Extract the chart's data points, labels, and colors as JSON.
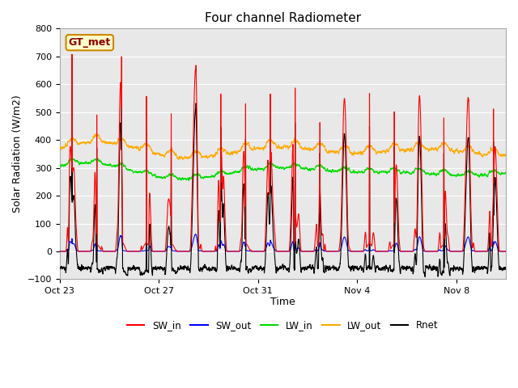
{
  "title": "Four channel Radiometer",
  "xlabel": "Time",
  "ylabel": "Solar Radiation (W/m2)",
  "ylim": [
    -100,
    800
  ],
  "yticks": [
    -100,
    0,
    100,
    200,
    300,
    400,
    500,
    600,
    700,
    800
  ],
  "fig_bg_color": "#ffffff",
  "plot_bg_color": "#e8e8e8",
  "grid_color": "#ffffff",
  "annotation_text": "GT_met",
  "annotation_bg": "#ffffcc",
  "annotation_border": "#cc8800",
  "series": {
    "SW_in": {
      "color": "#ff0000",
      "lw": 0.8
    },
    "SW_out": {
      "color": "#0000ff",
      "lw": 0.8
    },
    "LW_in": {
      "color": "#00dd00",
      "lw": 0.8
    },
    "LW_out": {
      "color": "#ffaa00",
      "lw": 0.8
    },
    "Rnet": {
      "color": "#000000",
      "lw": 0.8
    }
  },
  "xtick_labels": [
    "Oct 23",
    "Oct 27",
    "Oct 31",
    "Nov 4",
    "Nov 8"
  ],
  "xtick_positions": [
    0,
    4,
    8,
    12,
    16
  ],
  "total_days": 18,
  "samples_per_day": 288,
  "title_fontsize": 11,
  "axis_fontsize": 9,
  "tick_fontsize": 8
}
